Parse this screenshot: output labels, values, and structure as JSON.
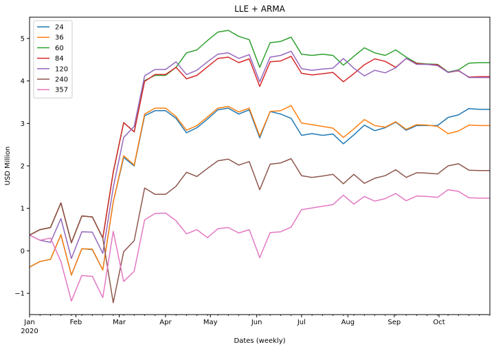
{
  "chart_data": {
    "type": "line",
    "title": "LLE + ARMA",
    "xlabel": "Dates (weekly)",
    "ylabel": "USD Million",
    "ylim": [
      -1.5,
      5.5
    ],
    "grid": false,
    "legend_position": "top-left",
    "x": [
      "2020-01-01",
      "2020-01-08",
      "2020-01-15",
      "2020-01-22",
      "2020-01-29",
      "2020-02-05",
      "2020-02-12",
      "2020-02-19",
      "2020-02-26",
      "2020-03-04",
      "2020-03-11",
      "2020-03-18",
      "2020-03-25",
      "2020-04-01",
      "2020-04-08",
      "2020-04-15",
      "2020-04-22",
      "2020-04-29",
      "2020-05-06",
      "2020-05-13",
      "2020-05-20",
      "2020-05-27",
      "2020-06-03",
      "2020-06-10",
      "2020-06-17",
      "2020-06-24",
      "2020-07-01",
      "2020-07-08",
      "2020-07-15",
      "2020-07-22",
      "2020-07-29",
      "2020-08-05",
      "2020-08-12",
      "2020-08-19",
      "2020-08-26",
      "2020-09-02",
      "2020-09-09",
      "2020-09-16",
      "2020-09-23",
      "2020-09-30",
      "2020-10-07",
      "2020-10-14",
      "2020-10-21",
      "2020-10-28",
      "2020-11-04"
    ],
    "x_ticks": [
      {
        "date": "2020-01-01",
        "label": "Jan",
        "sublabel": "2020"
      },
      {
        "date": "2020-02-01",
        "label": "Feb",
        "sublabel": ""
      },
      {
        "date": "2020-03-01",
        "label": "Mar",
        "sublabel": ""
      },
      {
        "date": "2020-04-01",
        "label": "Apr",
        "sublabel": ""
      },
      {
        "date": "2020-05-01",
        "label": "May",
        "sublabel": ""
      },
      {
        "date": "2020-06-01",
        "label": "Jun",
        "sublabel": ""
      },
      {
        "date": "2020-07-01",
        "label": "Jul",
        "sublabel": ""
      },
      {
        "date": "2020-08-01",
        "label": "Aug",
        "sublabel": ""
      },
      {
        "date": "2020-09-01",
        "label": "Sep",
        "sublabel": ""
      },
      {
        "date": "2020-10-01",
        "label": "Oct",
        "sublabel": ""
      }
    ],
    "y_ticks": [
      {
        "value": -1,
        "label": "−1"
      },
      {
        "value": 0,
        "label": "0"
      },
      {
        "value": 1,
        "label": "1"
      },
      {
        "value": 2,
        "label": "2"
      },
      {
        "value": 3,
        "label": "3"
      },
      {
        "value": 4,
        "label": "4"
      },
      {
        "value": 5,
        "label": "5"
      }
    ],
    "series": [
      {
        "name": "24",
        "color": "#1f77b4",
        "values": [
          -0.38,
          -0.25,
          -0.2,
          0.38,
          -0.57,
          0.05,
          0.03,
          -0.45,
          1.15,
          2.2,
          2.0,
          3.18,
          3.3,
          3.3,
          3.12,
          2.78,
          2.9,
          3.1,
          3.32,
          3.36,
          3.22,
          3.32,
          2.66,
          3.28,
          3.22,
          3.12,
          2.72,
          2.76,
          2.72,
          2.75,
          2.52,
          2.73,
          2.96,
          2.83,
          2.9,
          3.03,
          2.84,
          2.95,
          2.95,
          2.95,
          3.14,
          3.2,
          3.35,
          3.33,
          3.33
        ]
      },
      {
        "name": "36",
        "color": "#ff7f0e",
        "values": [
          -0.38,
          -0.25,
          -0.2,
          0.38,
          -0.57,
          0.05,
          0.04,
          -0.45,
          1.15,
          2.24,
          2.02,
          3.22,
          3.36,
          3.36,
          3.16,
          2.84,
          2.95,
          3.15,
          3.36,
          3.4,
          3.27,
          3.36,
          2.7,
          3.28,
          3.3,
          3.42,
          3.01,
          2.97,
          2.93,
          2.89,
          2.67,
          2.87,
          3.09,
          2.95,
          2.91,
          3.04,
          2.86,
          2.97,
          2.96,
          2.93,
          2.76,
          2.82,
          2.96,
          2.95,
          2.95
        ]
      },
      {
        "name": "60",
        "color": "#2ca02c",
        "values": [
          0.37,
          0.5,
          0.55,
          1.13,
          0.19,
          0.82,
          0.8,
          0.3,
          1.85,
          3.02,
          2.8,
          4.01,
          4.13,
          4.13,
          4.32,
          4.66,
          4.73,
          4.95,
          5.15,
          5.19,
          5.05,
          4.97,
          4.32,
          4.9,
          4.93,
          5.03,
          4.63,
          4.6,
          4.63,
          4.6,
          4.37,
          4.58,
          4.78,
          4.66,
          4.6,
          4.73,
          4.56,
          4.42,
          4.4,
          4.39,
          4.21,
          4.26,
          4.42,
          4.43,
          4.43
        ]
      },
      {
        "name": "84",
        "color": "#d62728",
        "values": [
          0.37,
          0.5,
          0.55,
          1.13,
          0.19,
          0.82,
          0.8,
          0.3,
          1.85,
          3.02,
          2.8,
          3.99,
          4.15,
          4.15,
          4.32,
          4.05,
          4.13,
          4.33,
          4.53,
          4.56,
          4.43,
          4.52,
          3.87,
          4.45,
          4.47,
          4.58,
          4.18,
          4.14,
          4.17,
          4.2,
          3.98,
          4.17,
          4.38,
          4.52,
          4.46,
          4.32,
          4.53,
          4.41,
          4.39,
          4.38,
          4.2,
          4.24,
          4.09,
          4.1,
          4.1
        ]
      },
      {
        "name": "120",
        "color": "#9467bd",
        "values": [
          0.37,
          0.25,
          0.2,
          0.76,
          -0.18,
          0.45,
          0.44,
          -0.06,
          1.49,
          2.67,
          2.93,
          4.12,
          4.27,
          4.27,
          4.45,
          4.15,
          4.25,
          4.45,
          4.63,
          4.66,
          4.53,
          4.62,
          3.98,
          4.56,
          4.6,
          4.7,
          4.29,
          4.25,
          4.28,
          4.3,
          4.53,
          4.3,
          4.12,
          4.25,
          4.19,
          4.31,
          4.53,
          4.39,
          4.39,
          4.36,
          4.2,
          4.25,
          4.08,
          4.08,
          4.08
        ]
      },
      {
        "name": "240",
        "color": "#8c564b",
        "values": [
          0.37,
          0.5,
          0.55,
          1.13,
          0.19,
          0.82,
          0.8,
          0.3,
          -1.22,
          -0.02,
          0.24,
          1.48,
          1.33,
          1.33,
          1.52,
          1.85,
          1.75,
          1.94,
          2.12,
          2.16,
          2.02,
          2.1,
          1.44,
          2.04,
          2.07,
          2.17,
          1.77,
          1.73,
          1.76,
          1.8,
          1.58,
          1.8,
          1.59,
          1.71,
          1.77,
          1.91,
          1.73,
          1.84,
          1.83,
          1.81,
          2.0,
          2.05,
          1.9,
          1.89,
          1.89
        ]
      },
      {
        "name": "357",
        "color": "#e377c2",
        "values": [
          0.37,
          0.25,
          0.3,
          -0.25,
          -1.18,
          -0.58,
          -0.6,
          -1.1,
          0.46,
          -0.72,
          -0.48,
          0.73,
          0.88,
          0.89,
          0.71,
          0.4,
          0.5,
          0.31,
          0.52,
          0.55,
          0.42,
          0.5,
          -0.16,
          0.43,
          0.45,
          0.56,
          0.97,
          1.01,
          1.05,
          1.09,
          1.31,
          1.1,
          1.28,
          1.17,
          1.23,
          1.35,
          1.18,
          1.29,
          1.28,
          1.26,
          1.44,
          1.4,
          1.25,
          1.24,
          1.24
        ]
      }
    ]
  }
}
